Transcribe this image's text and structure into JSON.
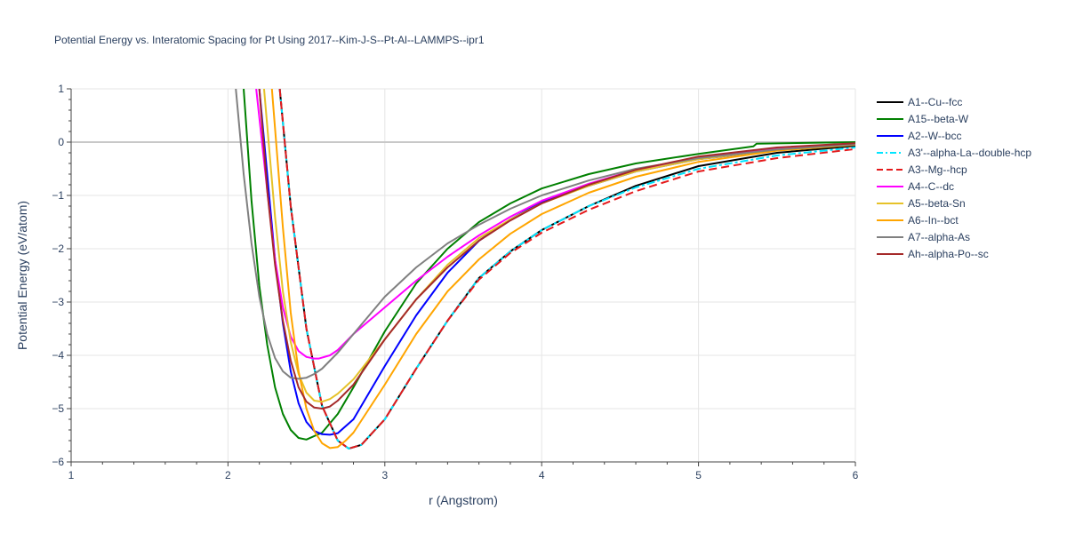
{
  "chart_data": {
    "type": "line",
    "title": "Potential Energy vs. Interatomic Spacing for Pt Using 2017--Kim-J-S--Pt-Al--LAMMPS--ipr1",
    "xlabel": "r (Angstrom)",
    "ylabel": "Potential Energy (eV/atom)",
    "xlim": [
      1,
      6
    ],
    "ylim": [
      -6,
      1
    ],
    "x_ticks": [
      1,
      2,
      3,
      4,
      5,
      6
    ],
    "x_tick_labels": [
      "1",
      "2",
      "3",
      "4",
      "5",
      "6"
    ],
    "y_ticks": [
      1,
      0,
      -1,
      -2,
      -3,
      -4,
      -5,
      -6
    ],
    "y_tick_labels": [
      "1",
      "0",
      "−1",
      "−2",
      "−3",
      "−4",
      "−5",
      "−6"
    ],
    "grid": true,
    "legend_position": "right",
    "series": [
      {
        "name": "A1--Cu--fcc",
        "color": "#000000",
        "dash": "solid",
        "x": [
          2.33,
          2.4,
          2.5,
          2.6,
          2.7,
          2.77,
          2.85,
          3.0,
          3.2,
          3.4,
          3.6,
          3.8,
          4.0,
          4.3,
          4.6,
          5.0,
          5.5,
          6.0
        ],
        "y": [
          1.0,
          -1.2,
          -3.5,
          -4.95,
          -5.6,
          -5.75,
          -5.68,
          -5.2,
          -4.25,
          -3.35,
          -2.55,
          -2.05,
          -1.65,
          -1.2,
          -0.82,
          -0.45,
          -0.2,
          -0.07
        ]
      },
      {
        "name": "A15--beta-W",
        "color": "#008000",
        "dash": "solid",
        "x": [
          2.1,
          2.15,
          2.2,
          2.25,
          2.3,
          2.35,
          2.4,
          2.45,
          2.5,
          2.6,
          2.7,
          2.8,
          3.0,
          3.2,
          3.4,
          3.6,
          3.8,
          4.0,
          4.3,
          4.6,
          5.0,
          5.35,
          5.37,
          6.0
        ],
        "y": [
          1.0,
          -1.1,
          -2.7,
          -3.8,
          -4.6,
          -5.1,
          -5.4,
          -5.55,
          -5.58,
          -5.45,
          -5.1,
          -4.6,
          -3.55,
          -2.65,
          -2.0,
          -1.5,
          -1.15,
          -0.87,
          -0.6,
          -0.4,
          -0.22,
          -0.08,
          -0.03,
          0.0
        ]
      },
      {
        "name": "A2--W--bcc",
        "color": "#0000ff",
        "dash": "solid",
        "x": [
          2.2,
          2.25,
          2.3,
          2.35,
          2.4,
          2.45,
          2.5,
          2.55,
          2.6,
          2.65,
          2.7,
          2.8,
          3.0,
          3.2,
          3.4,
          3.6,
          3.8,
          4.0,
          4.3,
          4.6,
          5.0,
          5.5,
          6.0
        ],
        "y": [
          1.0,
          -0.6,
          -2.2,
          -3.4,
          -4.3,
          -4.9,
          -5.25,
          -5.42,
          -5.48,
          -5.49,
          -5.46,
          -5.2,
          -4.2,
          -3.25,
          -2.45,
          -1.85,
          -1.45,
          -1.12,
          -0.82,
          -0.55,
          -0.32,
          -0.15,
          -0.05
        ]
      },
      {
        "name": "A3'--alpha-La--double-hcp",
        "color": "#00e5ff",
        "dash": "dashdot",
        "x": [
          2.33,
          2.4,
          2.5,
          2.6,
          2.7,
          2.77,
          2.85,
          3.0,
          3.2,
          3.4,
          3.6,
          3.8,
          4.0,
          4.3,
          4.6,
          5.0,
          5.5,
          6.0
        ],
        "y": [
          1.0,
          -1.2,
          -3.5,
          -4.95,
          -5.6,
          -5.75,
          -5.68,
          -5.2,
          -4.25,
          -3.35,
          -2.55,
          -2.05,
          -1.65,
          -1.2,
          -0.85,
          -0.5,
          -0.25,
          -0.1
        ]
      },
      {
        "name": "A3--Mg--hcp",
        "color": "#e41a1c",
        "dash": "dash",
        "x": [
          2.33,
          2.4,
          2.5,
          2.6,
          2.7,
          2.77,
          2.85,
          3.0,
          3.2,
          3.4,
          3.6,
          3.8,
          4.0,
          4.3,
          4.6,
          5.0,
          5.5,
          6.0
        ],
        "y": [
          1.0,
          -1.2,
          -3.5,
          -4.95,
          -5.6,
          -5.75,
          -5.68,
          -5.2,
          -4.25,
          -3.35,
          -2.58,
          -2.08,
          -1.7,
          -1.27,
          -0.92,
          -0.55,
          -0.3,
          -0.13
        ]
      },
      {
        "name": "A4--C--dc",
        "color": "#ff00ff",
        "dash": "solid",
        "x": [
          2.18,
          2.25,
          2.3,
          2.35,
          2.4,
          2.45,
          2.5,
          2.55,
          2.58,
          2.65,
          2.7,
          2.8,
          3.0,
          3.2,
          3.4,
          3.6,
          3.8,
          4.0,
          4.3,
          4.6,
          5.0,
          5.5,
          6.0
        ],
        "y": [
          1.0,
          -0.9,
          -2.2,
          -3.1,
          -3.65,
          -3.92,
          -4.03,
          -4.06,
          -4.06,
          -4.0,
          -3.9,
          -3.6,
          -3.1,
          -2.6,
          -2.15,
          -1.75,
          -1.4,
          -1.1,
          -0.78,
          -0.52,
          -0.3,
          -0.13,
          -0.04
        ]
      },
      {
        "name": "A5--beta-Sn",
        "color": "#e6c229",
        "dash": "solid",
        "x": [
          2.23,
          2.3,
          2.35,
          2.4,
          2.45,
          2.5,
          2.55,
          2.6,
          2.65,
          2.7,
          2.8,
          3.0,
          3.2,
          3.4,
          3.6,
          3.8,
          4.0,
          4.3,
          4.6,
          5.0,
          5.5,
          6.0
        ],
        "y": [
          1.0,
          -1.4,
          -2.8,
          -3.75,
          -4.35,
          -4.7,
          -4.85,
          -4.87,
          -4.82,
          -4.72,
          -4.45,
          -3.7,
          -2.95,
          -2.3,
          -1.8,
          -1.45,
          -1.15,
          -0.82,
          -0.55,
          -0.32,
          -0.14,
          -0.04
        ]
      },
      {
        "name": "A6--In--bct",
        "color": "#ffa500",
        "dash": "solid",
        "x": [
          2.28,
          2.35,
          2.4,
          2.45,
          2.5,
          2.55,
          2.6,
          2.65,
          2.7,
          2.75,
          2.8,
          3.0,
          3.2,
          3.4,
          3.6,
          3.8,
          4.0,
          4.3,
          4.6,
          5.0,
          5.5,
          6.0
        ],
        "y": [
          1.0,
          -1.6,
          -3.2,
          -4.3,
          -5.0,
          -5.42,
          -5.65,
          -5.74,
          -5.72,
          -5.6,
          -5.45,
          -4.55,
          -3.6,
          -2.8,
          -2.2,
          -1.72,
          -1.35,
          -0.95,
          -0.65,
          -0.37,
          -0.16,
          -0.05
        ]
      },
      {
        "name": "A7--alpha-As",
        "color": "#808080",
        "dash": "solid",
        "x": [
          2.05,
          2.1,
          2.15,
          2.2,
          2.25,
          2.3,
          2.35,
          2.4,
          2.45,
          2.5,
          2.55,
          2.6,
          2.7,
          2.8,
          3.0,
          3.2,
          3.4,
          3.6,
          3.8,
          4.0,
          4.3,
          4.6,
          5.0,
          5.5,
          6.0
        ],
        "y": [
          1.0,
          -0.6,
          -1.9,
          -2.9,
          -3.6,
          -4.05,
          -4.3,
          -4.42,
          -4.44,
          -4.42,
          -4.35,
          -4.25,
          -3.95,
          -3.6,
          -2.9,
          -2.35,
          -1.9,
          -1.55,
          -1.25,
          -1.0,
          -0.72,
          -0.5,
          -0.3,
          -0.14,
          -0.04
        ]
      },
      {
        "name": "Ah--alpha-Po--sc",
        "color": "#a52a2a",
        "dash": "solid",
        "x": [
          2.2,
          2.25,
          2.3,
          2.35,
          2.4,
          2.45,
          2.5,
          2.55,
          2.6,
          2.65,
          2.7,
          2.8,
          3.0,
          3.2,
          3.4,
          3.6,
          3.8,
          4.0,
          4.3,
          4.6,
          5.0,
          5.5,
          6.0
        ],
        "y": [
          1.0,
          -0.9,
          -2.3,
          -3.35,
          -4.1,
          -4.6,
          -4.87,
          -4.98,
          -5.0,
          -4.96,
          -4.85,
          -4.55,
          -3.7,
          -2.95,
          -2.35,
          -1.85,
          -1.47,
          -1.15,
          -0.8,
          -0.52,
          -0.27,
          -0.1,
          -0.02
        ]
      }
    ]
  }
}
